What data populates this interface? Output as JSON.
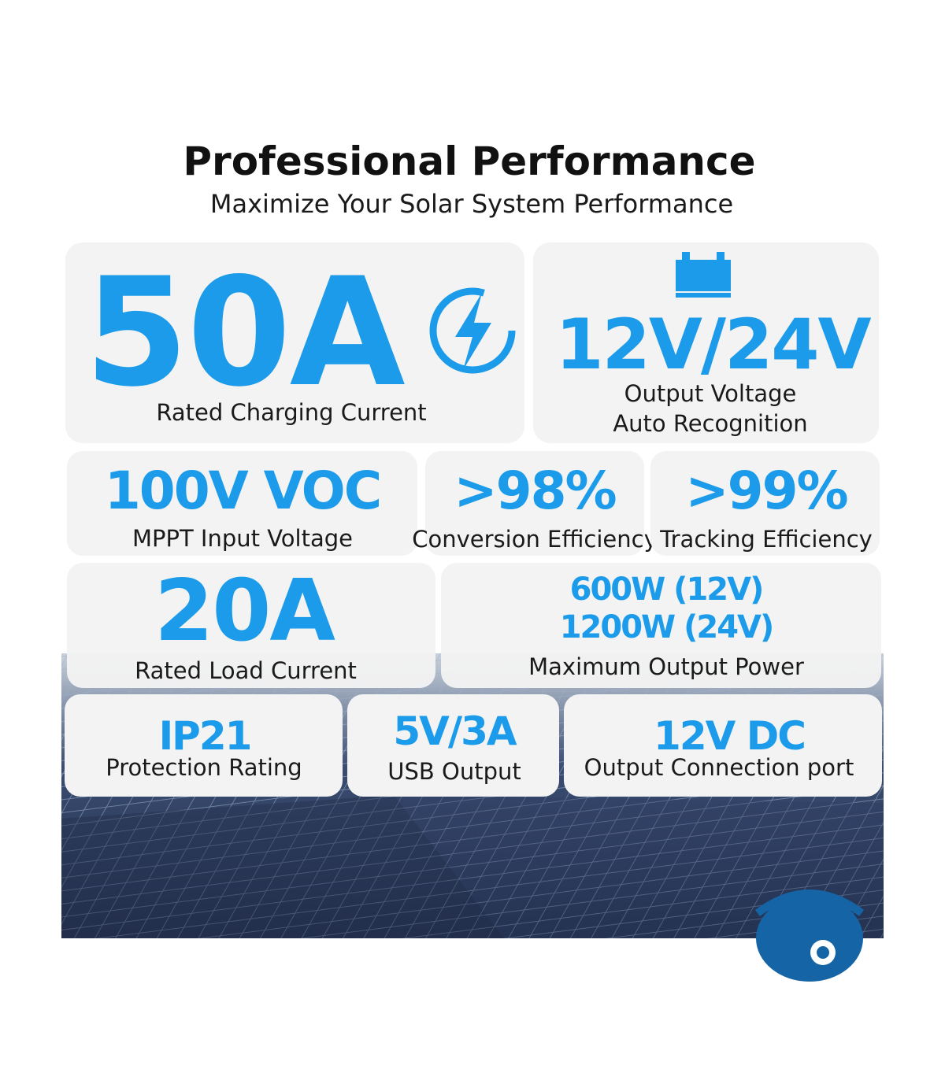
{
  "header": {
    "title": "Professional Performance",
    "subtitle": "Maximize Your Solar System Performance"
  },
  "cards": [
    {
      "value": "50A",
      "label": "Rated Charging Current"
    },
    {
      "value": "12V/24V",
      "label": "Output Voltage",
      "label2": "Auto Recognition"
    },
    {
      "value": "100V VOC",
      "label": "MPPT Input Voltage"
    },
    {
      "value": ">98%",
      "label": "Conversion Efficiency"
    },
    {
      "value": ">99%",
      "label": "Tracking Efficiency"
    },
    {
      "value": "20A",
      "label": "Rated Load Current"
    },
    {
      "value": "600W (12V)",
      "value2": "1200W (24V)",
      "label": "Maximum Output Power"
    },
    {
      "value": "IP21",
      "label": "Protection Rating"
    },
    {
      "value": "5V/3A",
      "label": "USB Output"
    },
    {
      "value": "12V DC",
      "label": "Output Connection port"
    }
  ]
}
